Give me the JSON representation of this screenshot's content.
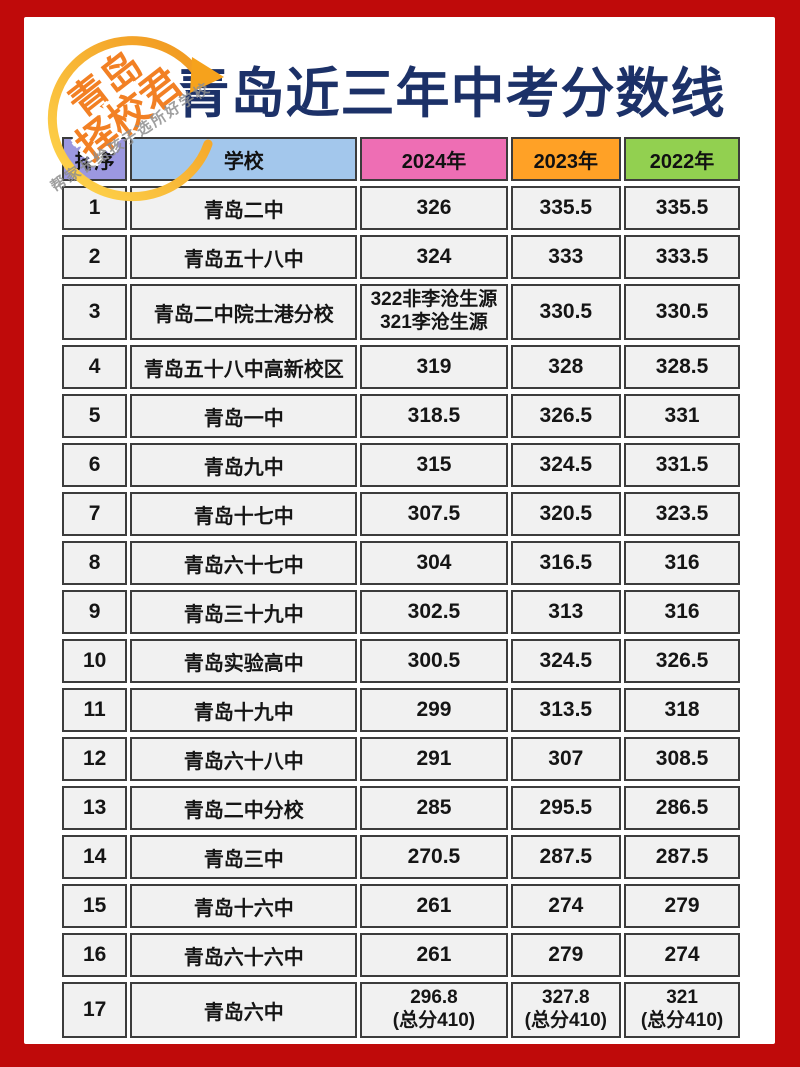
{
  "frame": {
    "bg_color": "#bf0a0a",
    "panel_color": "#ffffff"
  },
  "title": "青岛近三年中考分数线",
  "title_color": "#1c3168",
  "logo": {
    "line1": "青岛",
    "line2": "择校君",
    "text_color": "#f28024",
    "arrow_color_start": "#ffd84f",
    "arrow_color_end": "#f0931c"
  },
  "watermark": "帮家长给孩子选所好学校",
  "chart_data": {
    "type": "table",
    "title": "青岛近三年中考分数线",
    "columns": [
      {
        "label": "排序",
        "header_color": "#9c98e0"
      },
      {
        "label": "学校",
        "header_color": "#a3c7ec"
      },
      {
        "label": "2024年",
        "header_color": "#ee6eb4"
      },
      {
        "label": "2023年",
        "header_color": "#ffa126"
      },
      {
        "label": "2022年",
        "header_color": "#92d050"
      }
    ],
    "rows": [
      [
        "1",
        "青岛二中",
        "326",
        "335.5",
        "335.5"
      ],
      [
        "2",
        "青岛五十八中",
        "324",
        "333",
        "333.5"
      ],
      [
        "3",
        "青岛二中院士港分校",
        "322非李沧生源\n321李沧生源",
        "330.5",
        "330.5"
      ],
      [
        "4",
        "青岛五十八中高新校区",
        "319",
        "328",
        "328.5"
      ],
      [
        "5",
        "青岛一中",
        "318.5",
        "326.5",
        "331"
      ],
      [
        "6",
        "青岛九中",
        "315",
        "324.5",
        "331.5"
      ],
      [
        "7",
        "青岛十七中",
        "307.5",
        "320.5",
        "323.5"
      ],
      [
        "8",
        "青岛六十七中",
        "304",
        "316.5",
        "316"
      ],
      [
        "9",
        "青岛三十九中",
        "302.5",
        "313",
        "316"
      ],
      [
        "10",
        "青岛实验高中",
        "300.5",
        "324.5",
        "326.5"
      ],
      [
        "11",
        "青岛十九中",
        "299",
        "313.5",
        "318"
      ],
      [
        "12",
        "青岛六十八中",
        "291",
        "307",
        "308.5"
      ],
      [
        "13",
        "青岛二中分校",
        "285",
        "295.5",
        "286.5"
      ],
      [
        "14",
        "青岛三中",
        "270.5",
        "287.5",
        "287.5"
      ],
      [
        "15",
        "青岛十六中",
        "261",
        "274",
        "279"
      ],
      [
        "16",
        "青岛六十六中",
        "261",
        "279",
        "274"
      ],
      [
        "17",
        "青岛六中",
        "296.8\n(总分410)",
        "327.8\n(总分410)",
        "321\n(总分410)"
      ]
    ]
  }
}
